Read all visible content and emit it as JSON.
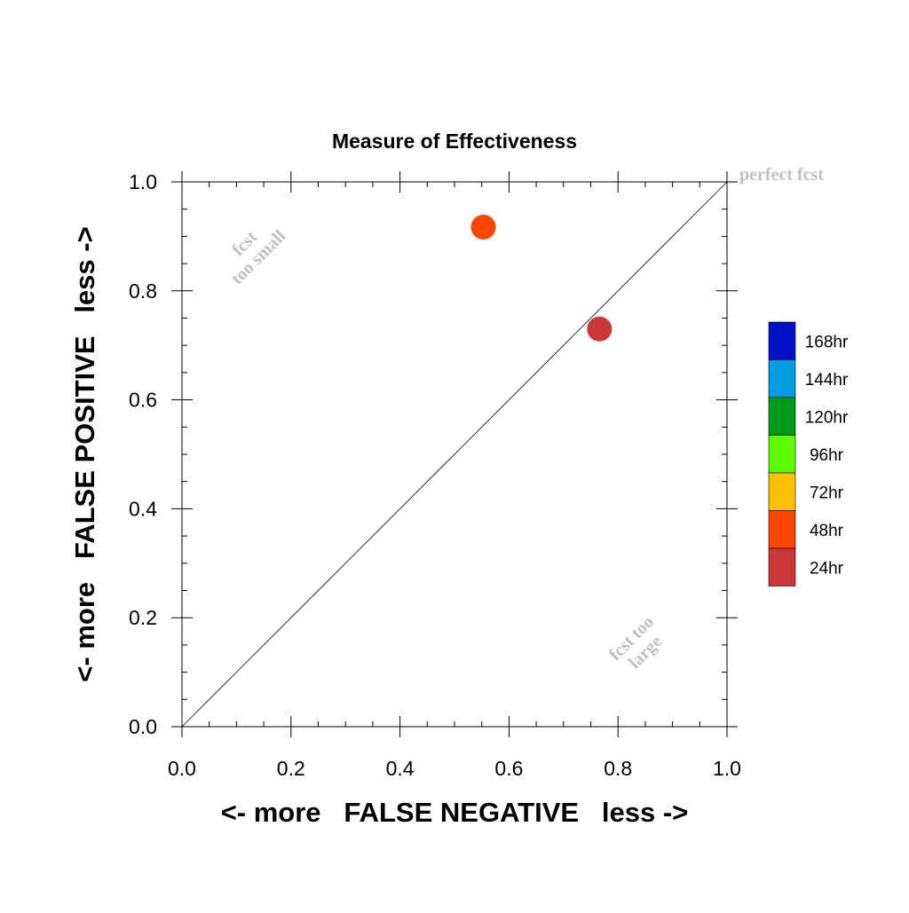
{
  "chart_data": {
    "type": "scatter",
    "title": "Measure of Effectiveness",
    "xlabel": "<- more   FALSE NEGATIVE   less ->",
    "ylabel": "<- more   FALSE POSITIVE   less ->",
    "xlim": [
      0.0,
      1.0
    ],
    "ylim": [
      0.0,
      1.0
    ],
    "x_ticks": [
      "0.0",
      "0.2",
      "0.4",
      "0.6",
      "0.8",
      "1.0"
    ],
    "y_ticks": [
      "0.0",
      "0.2",
      "0.4",
      "0.6",
      "0.8",
      "1.0"
    ],
    "grid": false,
    "reference_line": {
      "from": [
        0.0,
        0.0
      ],
      "to": [
        1.0,
        1.0
      ]
    },
    "annotations": {
      "perfect": "perfect fcst",
      "too_small_1": "fcst",
      "too_small_2": "too small",
      "too_large_1": "fcst too",
      "too_large_2": "large"
    },
    "points": [
      {
        "x": 0.553,
        "y": 0.917,
        "color": "#ff4500",
        "series": "48hr"
      },
      {
        "x": 0.766,
        "y": 0.73,
        "color": "#cc3838",
        "series": "24hr"
      }
    ],
    "legend": {
      "placement": "right",
      "items": [
        {
          "label": "168hr",
          "color": "#0010c8"
        },
        {
          "label": "144hr",
          "color": "#009ee0"
        },
        {
          "label": "120hr",
          "color": "#009a1a"
        },
        {
          "label": "96hr",
          "color": "#5aff00"
        },
        {
          "label": "72hr",
          "color": "#ffc000"
        },
        {
          "label": "48hr",
          "color": "#ff4500"
        },
        {
          "label": "24hr",
          "color": "#cc3838"
        }
      ]
    }
  }
}
